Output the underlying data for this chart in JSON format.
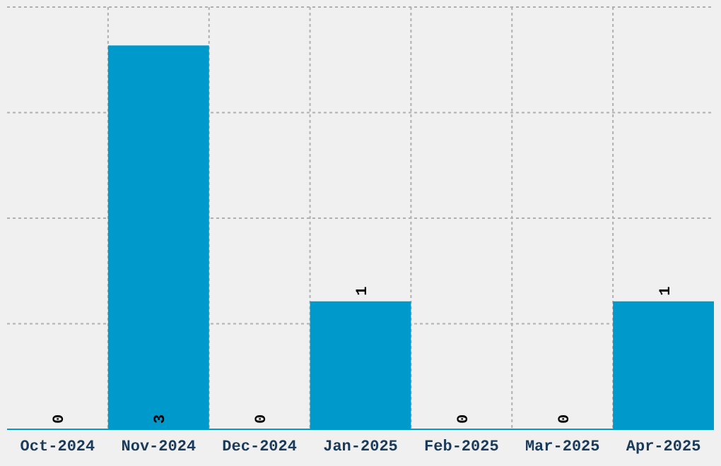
{
  "chart_data": {
    "type": "bar",
    "categories": [
      "Oct-2024",
      "Nov-2024",
      "Dec-2024",
      "Jan-2025",
      "Feb-2025",
      "Mar-2025",
      "Apr-2025"
    ],
    "values": [
      0,
      3,
      0,
      1,
      0,
      0,
      1
    ],
    "color": "#0099cc",
    "data_labels": true,
    "ylim": [
      0,
      3.3
    ],
    "yticks": [
      {
        "value": 0.825,
        "label": null
      },
      {
        "value": 1.65,
        "label": null
      },
      {
        "value": 2.475,
        "label": null
      },
      {
        "value": 3.3,
        "label": null
      }
    ],
    "tick_labels": "x",
    "grid": true
  }
}
